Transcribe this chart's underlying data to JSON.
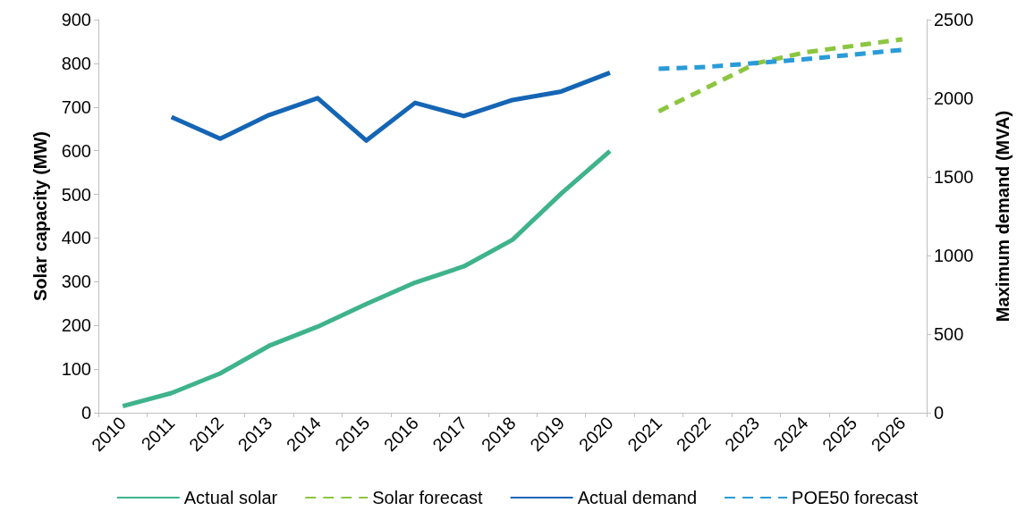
{
  "chart_data": {
    "type": "line",
    "categories": [
      "2010",
      "2011",
      "2012",
      "2013",
      "2014",
      "2015",
      "2016",
      "2017",
      "2018",
      "2019",
      "2020",
      "2021",
      "2022",
      "2023",
      "2024",
      "2025",
      "2026"
    ],
    "ylabel": "Solar capacity (MW)",
    "y2label": "Maximum demand (MVA)",
    "ylim": [
      0,
      900
    ],
    "yticks": [
      0,
      100,
      200,
      300,
      400,
      500,
      600,
      700,
      800,
      900
    ],
    "y2lim": [
      0,
      2500
    ],
    "y2ticks": [
      0,
      500,
      1000,
      1500,
      2000,
      2500
    ],
    "grid": false,
    "legend": "bottom",
    "marker": "none",
    "series": [
      {
        "name": "Actual solar",
        "color": "#3fb38b",
        "line_style": "solid",
        "values": [
          15,
          45,
          90,
          153,
          197,
          249,
          298,
          335,
          396,
          502,
          599,
          null,
          null,
          null,
          null,
          null,
          null
        ]
      },
      {
        "name": "Solar forecast",
        "color": "#8cc63f",
        "line_style": "dashed",
        "values": [
          null,
          null,
          null,
          null,
          null,
          null,
          null,
          null,
          null,
          null,
          null,
          690,
          745,
          800,
          825,
          840,
          855
        ]
      },
      {
        "name": "Actual demand",
        "color": "#1565b5",
        "line_style": "solid",
        "axis": "y2",
        "values": [
          null,
          1881,
          1743,
          1893,
          2001,
          1731,
          1971,
          1887,
          1989,
          2043,
          2163,
          null,
          null,
          null,
          null,
          null,
          null
        ]
      },
      {
        "name": "POE50 forecast",
        "color": "#2a9bd8",
        "line_style": "dashed",
        "axis": "y2",
        "values": [
          null,
          null,
          null,
          null,
          null,
          null,
          null,
          null,
          null,
          null,
          null,
          2187,
          2200,
          2224,
          2248,
          2278,
          2308
        ]
      }
    ]
  }
}
